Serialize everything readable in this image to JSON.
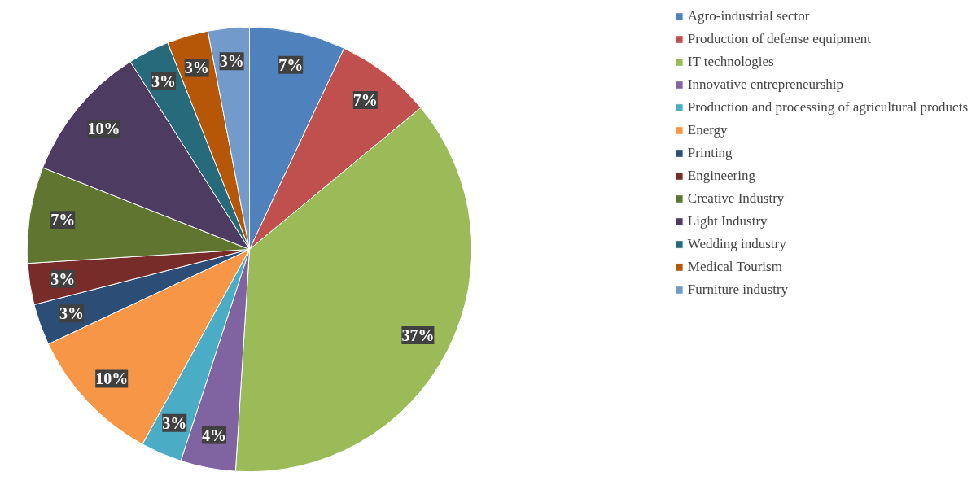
{
  "chart_data": {
    "type": "pie",
    "data_labels": true,
    "legend": "right",
    "categories": [
      "Agro-industrial sector",
      "Production of defense equipment",
      "IT technologies",
      "Innovative entrepreneurship",
      "Production and processing of agricultural products",
      "Energy",
      "Printing",
      "Engineering",
      "Creative Industry",
      "Light Industry",
      "Wedding industry",
      "Medical Tourism",
      "Furniture industry"
    ],
    "values": [
      7,
      7,
      37,
      4,
      3,
      10,
      3,
      3,
      7,
      10,
      3,
      3,
      3
    ],
    "value_labels": [
      "7%",
      "7%",
      "37%",
      "4%",
      "3%",
      "10%",
      "3%",
      "3%",
      "7%",
      "10%",
      "3%",
      "3%",
      "3%"
    ],
    "colors": [
      "#4f81bd",
      "#c0504d",
      "#9bbb59",
      "#8064a2",
      "#4bacc6",
      "#f79646",
      "#2c4d75",
      "#772c2a",
      "#5f7530",
      "#4d3b62",
      "#276a7c",
      "#b65708",
      "#729aca"
    ]
  }
}
